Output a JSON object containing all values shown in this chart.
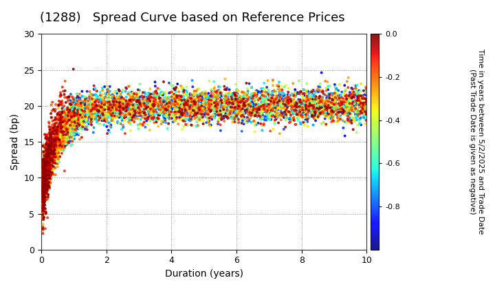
{
  "title": "(1288)   Spread Curve based on Reference Prices",
  "xlabel": "Duration (years)",
  "ylabel": "Spread (bp)",
  "colorbar_label": "Time in years between 5/2/2025 and Trade Date\n(Past Trade Date is given as negative)",
  "xlim": [
    0,
    10
  ],
  "ylim": [
    0,
    30
  ],
  "xticks": [
    0,
    2,
    4,
    6,
    8,
    10
  ],
  "yticks": [
    0,
    5,
    10,
    15,
    20,
    25,
    30
  ],
  "colorbar_ticks": [
    0.0,
    -0.2,
    -0.4,
    -0.6,
    -0.8
  ],
  "vmin": -1.0,
  "vmax": 0.0,
  "background_color": "#ffffff",
  "grid_color": "#888888",
  "title_fontsize": 13,
  "axis_label_fontsize": 10,
  "tick_fontsize": 9,
  "colorbar_fontsize": 8,
  "marker_size": 8,
  "seed": 42,
  "n_curves": 5,
  "n_per_curve": 800
}
